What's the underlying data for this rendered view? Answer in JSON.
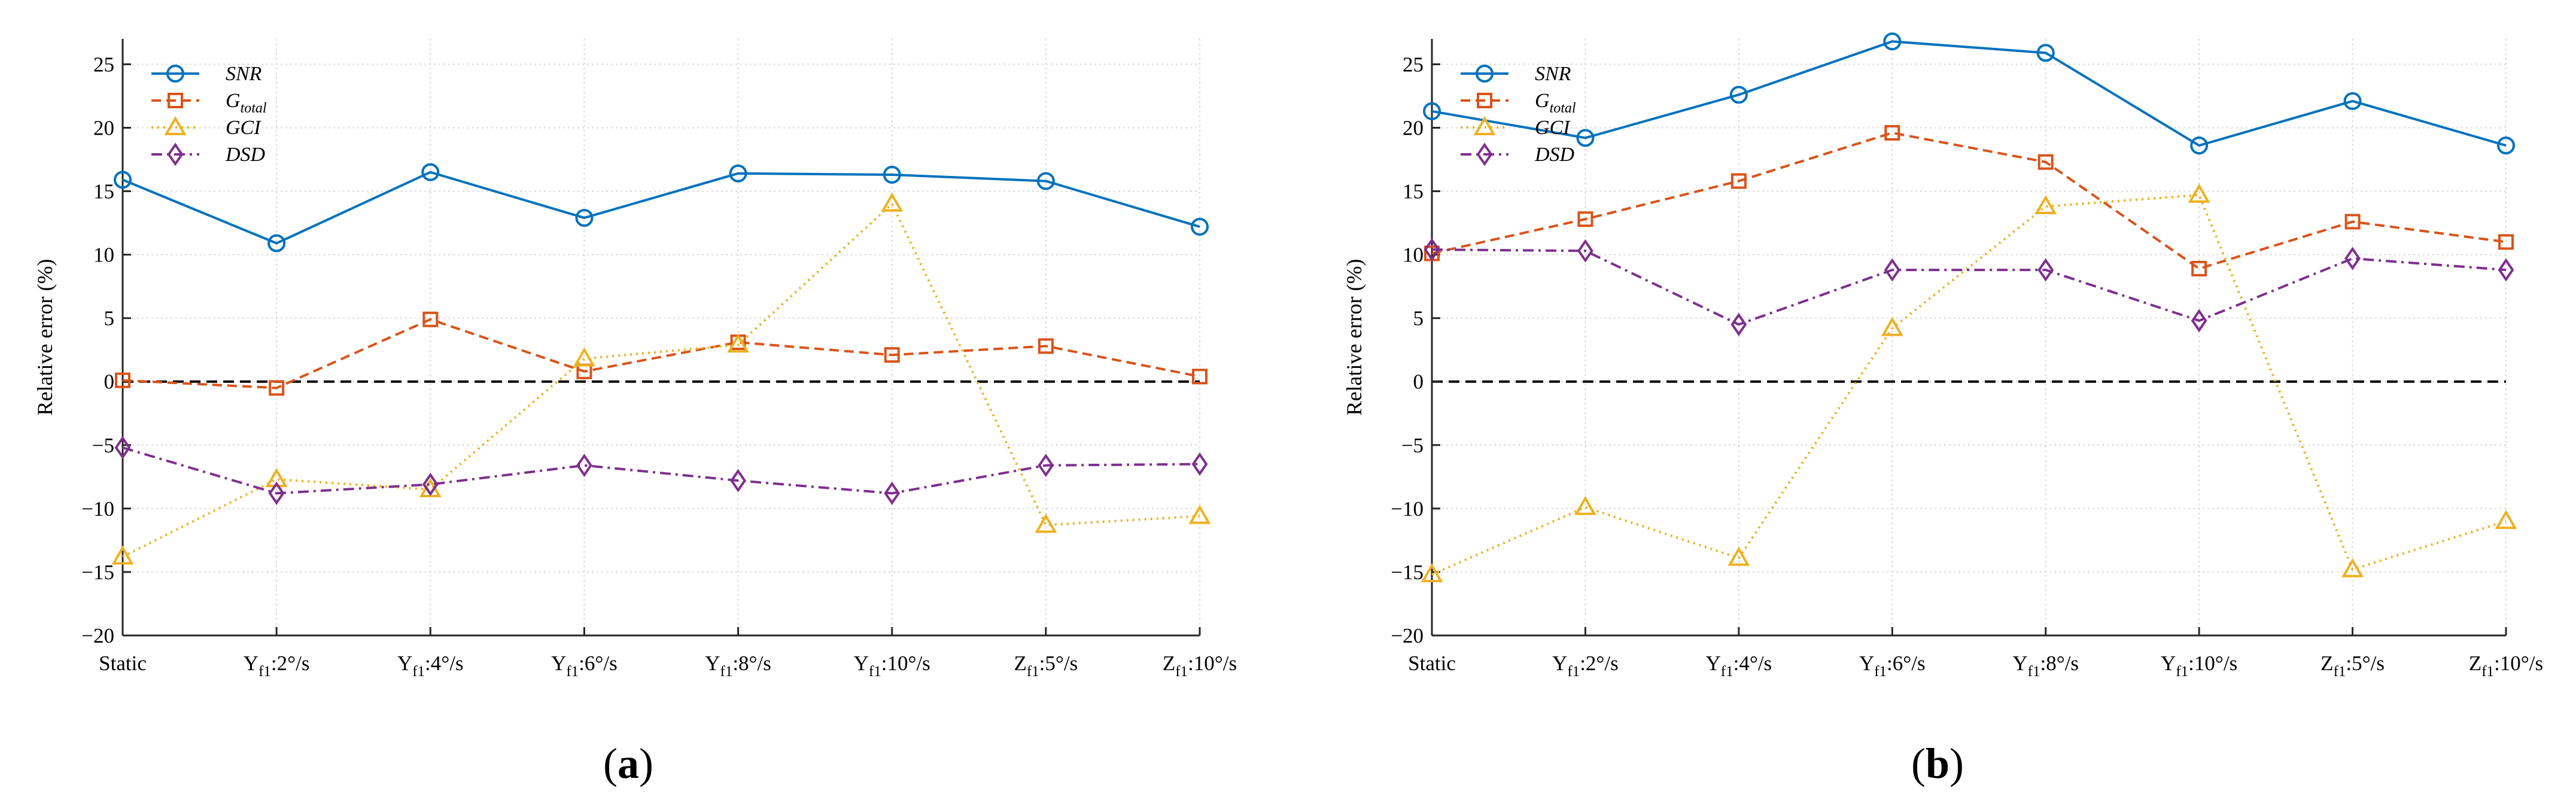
{
  "chart_data": [
    {
      "type": "line",
      "panel": "a",
      "caption": {
        "open": "(",
        "letter": "a",
        "close": ")"
      },
      "title": "",
      "xlabel": "",
      "ylabel": "Relative error (%)",
      "ylim": [
        -20,
        27
      ],
      "yticks": [
        -20,
        -15,
        -10,
        -5,
        0,
        5,
        10,
        15,
        20,
        25
      ],
      "ytick_labels": [
        "−20",
        "−15",
        "−10",
        "−5",
        "0",
        "5",
        "10",
        "15",
        "20",
        "25"
      ],
      "grid": true,
      "legend_position": "top-left",
      "reference_line": {
        "y": 0,
        "style": "dashed",
        "color": "#000000"
      },
      "categories": [
        {
          "main": "Static",
          "sub": "",
          "suffix": ""
        },
        {
          "main": "Y",
          "sub": "f1",
          "suffix": ":2°/s"
        },
        {
          "main": "Y",
          "sub": "f1",
          "suffix": ":4°/s"
        },
        {
          "main": "Y",
          "sub": "f1",
          "suffix": ":6°/s"
        },
        {
          "main": "Y",
          "sub": "f1",
          "suffix": ":8°/s"
        },
        {
          "main": "Y",
          "sub": "f1",
          "suffix": ":10°/s"
        },
        {
          "main": "Z",
          "sub": "f1",
          "suffix": ":5°/s"
        },
        {
          "main": "Z",
          "sub": "f1",
          "suffix": ":10°/s"
        }
      ],
      "series": [
        {
          "name": "SNR",
          "name_main": "SNR",
          "name_sub": "",
          "color": "#0072BD",
          "marker": "circle",
          "dash": "solid",
          "values": [
            15.9,
            10.9,
            16.5,
            12.9,
            16.4,
            16.3,
            15.8,
            12.2
          ]
        },
        {
          "name": "G_total",
          "name_main": "G",
          "name_sub": "total",
          "color": "#D95319",
          "marker": "square",
          "dash": "dashed",
          "values": [
            0.1,
            -0.5,
            4.9,
            0.8,
            3.1,
            2.1,
            2.8,
            0.4
          ]
        },
        {
          "name": "GCI",
          "name_main": "GCI",
          "name_sub": "",
          "color": "#EDB120",
          "marker": "triangle",
          "dash": "dotted",
          "values": [
            -13.8,
            -7.7,
            -8.5,
            1.8,
            2.9,
            14.0,
            -11.3,
            -10.6
          ]
        },
        {
          "name": "DSD",
          "name_main": "DSD",
          "name_sub": "",
          "color": "#7E2F8E",
          "marker": "diamond",
          "dash": "dashdot",
          "values": [
            -5.2,
            -8.8,
            -8.1,
            -6.6,
            -7.8,
            -8.8,
            -6.6,
            -6.5
          ]
        }
      ]
    },
    {
      "type": "line",
      "panel": "b",
      "caption": {
        "open": "(",
        "letter": "b",
        "close": ")"
      },
      "title": "",
      "xlabel": "",
      "ylabel": "Relative error (%)",
      "ylim": [
        -20,
        27
      ],
      "yticks": [
        -20,
        -15,
        -10,
        -5,
        0,
        5,
        10,
        15,
        20,
        25
      ],
      "ytick_labels": [
        "−20",
        "−15",
        "−10",
        "−5",
        "0",
        "5",
        "10",
        "15",
        "20",
        "25"
      ],
      "grid": true,
      "legend_position": "top-left",
      "reference_line": {
        "y": 0,
        "style": "dashed",
        "color": "#000000"
      },
      "categories": [
        {
          "main": "Static",
          "sub": "",
          "suffix": ""
        },
        {
          "main": "Y",
          "sub": "f1",
          "suffix": ":2°/s"
        },
        {
          "main": "Y",
          "sub": "f1",
          "suffix": ":4°/s"
        },
        {
          "main": "Y",
          "sub": "f1",
          "suffix": ":6°/s"
        },
        {
          "main": "Y",
          "sub": "f1",
          "suffix": ":8°/s"
        },
        {
          "main": "Y",
          "sub": "f1",
          "suffix": ":10°/s"
        },
        {
          "main": "Z",
          "sub": "f1",
          "suffix": ":5°/s"
        },
        {
          "main": "Z",
          "sub": "f1",
          "suffix": ":10°/s"
        }
      ],
      "series": [
        {
          "name": "SNR",
          "name_main": "SNR",
          "name_sub": "",
          "color": "#0072BD",
          "marker": "circle",
          "dash": "solid",
          "values": [
            21.3,
            19.2,
            22.6,
            26.8,
            25.9,
            18.6,
            22.1,
            18.6
          ]
        },
        {
          "name": "G_total",
          "name_main": "G",
          "name_sub": "total",
          "color": "#D95319",
          "marker": "square",
          "dash": "dashed",
          "values": [
            10.1,
            12.8,
            15.8,
            19.6,
            17.3,
            8.9,
            12.6,
            11.0
          ]
        },
        {
          "name": "GCI",
          "name_main": "GCI",
          "name_sub": "",
          "color": "#EDB120",
          "marker": "triangle",
          "dash": "dotted",
          "values": [
            -15.2,
            -9.9,
            -13.9,
            4.2,
            13.8,
            14.7,
            -14.8,
            -11.0
          ]
        },
        {
          "name": "DSD",
          "name_main": "DSD",
          "name_sub": "",
          "color": "#7E2F8E",
          "marker": "diamond",
          "dash": "dashdot",
          "values": [
            10.4,
            10.3,
            4.5,
            8.8,
            8.8,
            4.8,
            9.7,
            8.8
          ]
        }
      ]
    }
  ]
}
